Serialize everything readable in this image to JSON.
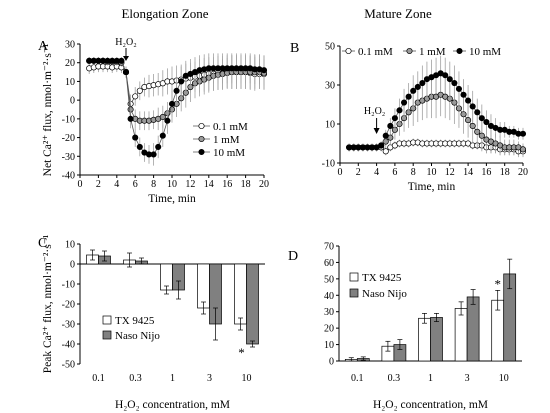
{
  "zone_titles": {
    "left": "Elongation Zone",
    "right": "Mature Zone"
  },
  "series_names": [
    "0.1 mM",
    "1 mM",
    "10 mM"
  ],
  "bar_legend": [
    "TX 9425",
    "Naso Nijo"
  ],
  "colors": {
    "open": "#ffffff",
    "grey": "#9a9a9a",
    "black": "#000000",
    "bar_grey": "#808080",
    "error": "#a0a0a0"
  },
  "chart_data": [
    {
      "panel": "A",
      "type": "line",
      "xlabel": "Time, min",
      "ylabel": "Net Ca²⁺ flux, nmol·m⁻²·s⁻¹",
      "xlim": [
        0,
        20
      ],
      "ylim": [
        -40,
        30
      ],
      "xticks": [
        "0",
        "2",
        "4",
        "6",
        "8",
        "10",
        "12",
        "14",
        "16",
        "18",
        "20"
      ],
      "yticks": [
        "30",
        "20",
        "10",
        "0",
        "-10",
        "-20",
        "-30",
        "-40"
      ],
      "annotation": {
        "text": "H₂O₂",
        "x": 5
      },
      "legend_position": "bottom-right",
      "x": [
        1,
        1.5,
        2,
        2.5,
        3,
        3.5,
        4,
        4.5,
        5,
        5.5,
        6,
        6.5,
        7,
        7.5,
        8,
        8.5,
        9,
        9.5,
        10,
        10.5,
        11,
        11.5,
        12,
        12.5,
        13,
        13.5,
        14,
        14.5,
        15,
        15.5,
        16,
        16.5,
        17,
        17.5,
        18,
        18.5,
        19,
        19.5,
        20
      ],
      "series": [
        {
          "name": "0.1 mM",
          "marker": "open",
          "values": [
            17,
            17.5,
            18,
            18,
            18,
            17.5,
            18,
            17.5,
            15,
            -2,
            2,
            5,
            7,
            7.5,
            8,
            8.5,
            9,
            10,
            10,
            10.5,
            11,
            11.5,
            12,
            12.5,
            13,
            13.5,
            14,
            14,
            14.5,
            14.5,
            15,
            15,
            15,
            15,
            15,
            14.5,
            14,
            14,
            14
          ],
          "errors": [
            3,
            3,
            3,
            3,
            3,
            3,
            3,
            3,
            3,
            5,
            5,
            5,
            5,
            6,
            6,
            6,
            7,
            7,
            8,
            8,
            8,
            8,
            8,
            8,
            9,
            9,
            9,
            9,
            9,
            9,
            9,
            9,
            9,
            9,
            9,
            9,
            9,
            8,
            8
          ]
        },
        {
          "name": "1 mM",
          "marker": "grey",
          "values": [
            21,
            21,
            21,
            21,
            20.5,
            20.5,
            20.5,
            20,
            15,
            -5,
            -10,
            -11,
            -11,
            -11,
            -10.5,
            -10,
            -9,
            -7,
            -5,
            -2,
            1,
            4,
            7,
            9,
            10,
            11,
            12,
            13,
            13.5,
            14,
            14.5,
            15,
            15,
            15,
            15,
            15,
            15,
            15,
            14.5
          ],
          "errors": [
            2,
            2,
            2,
            2,
            2,
            2,
            2,
            2,
            3,
            5,
            5,
            5,
            5,
            5,
            5,
            6,
            6,
            6,
            7,
            7,
            7,
            8,
            8,
            8,
            8,
            8,
            8,
            8,
            8,
            8,
            8,
            9,
            9,
            9,
            9,
            9,
            9,
            9,
            9
          ]
        },
        {
          "name": "10 mM",
          "marker": "black",
          "values": [
            21,
            21,
            21,
            21,
            21,
            21,
            21,
            21,
            15,
            -10,
            -20,
            -25,
            -28,
            -29,
            -29,
            -25,
            -19,
            -11,
            -2,
            5,
            10,
            13,
            14,
            15,
            16,
            16.5,
            17,
            17,
            17,
            17,
            17,
            17,
            17,
            17,
            17,
            17,
            16.5,
            16.5,
            16
          ],
          "errors": [
            2,
            2,
            2,
            2,
            2,
            2,
            2,
            2,
            3,
            5,
            5,
            5,
            5,
            5,
            6,
            6,
            6,
            7,
            7,
            7,
            8,
            8,
            8,
            8,
            8,
            8,
            8,
            8,
            8,
            8,
            8,
            8,
            8,
            8,
            8,
            8,
            8,
            8,
            8
          ]
        }
      ]
    },
    {
      "panel": "B",
      "type": "line",
      "xlabel": "Time, min",
      "ylabel": "",
      "xlim": [
        0,
        20
      ],
      "ylim": [
        -10,
        50
      ],
      "xticks": [
        "0",
        "2",
        "4",
        "6",
        "8",
        "10",
        "12",
        "14",
        "16",
        "18",
        "20"
      ],
      "yticks": [
        "50",
        "30",
        "10",
        "-10"
      ],
      "annotation": {
        "text": "H₂O₂",
        "x": 4
      },
      "legend_position": "top",
      "x": [
        1,
        1.5,
        2,
        2.5,
        3,
        3.5,
        4,
        4.5,
        5,
        5.5,
        6,
        6.5,
        7,
        7.5,
        8,
        8.5,
        9,
        9.5,
        10,
        10.5,
        11,
        11.5,
        12,
        12.5,
        13,
        13.5,
        14,
        14.5,
        15,
        15.5,
        16,
        16.5,
        17,
        17.5,
        18,
        18.5,
        19,
        19.5,
        20
      ],
      "series": [
        {
          "name": "0.1 mM",
          "marker": "open",
          "values": [
            -2,
            -2,
            -2,
            -2,
            -2,
            -2,
            -2,
            -2,
            -4,
            -2,
            -1,
            0,
            0,
            0,
            0.5,
            0.5,
            0,
            0,
            0,
            0,
            0,
            0,
            0,
            0,
            0,
            0,
            0,
            -1,
            -1,
            -1,
            -2,
            -2,
            -2,
            -3,
            -3,
            -3,
            -3,
            -4,
            -4
          ],
          "errors": [
            2,
            2,
            2,
            2,
            2,
            2,
            2,
            2,
            2,
            2,
            2,
            2,
            2,
            2,
            2,
            2,
            2,
            2,
            2,
            2,
            2,
            2,
            2,
            2,
            2,
            2,
            2,
            2,
            2,
            2,
            3,
            3,
            3,
            3,
            3,
            3,
            3,
            3,
            3
          ]
        },
        {
          "name": "1 mM",
          "marker": "grey",
          "values": [
            -2,
            -2,
            -2,
            -2,
            -2,
            -2,
            -2,
            -1,
            1,
            3,
            7,
            10,
            13,
            16,
            18,
            21,
            22,
            23,
            24,
            24,
            25,
            24,
            23,
            21,
            18,
            15,
            12,
            9,
            6,
            4,
            2,
            1,
            0,
            -1,
            -2,
            -2,
            -2,
            -2,
            -3
          ],
          "errors": [
            2,
            2,
            2,
            2,
            2,
            2,
            2,
            2,
            3,
            4,
            5,
            6,
            7,
            8,
            9,
            10,
            10,
            10,
            11,
            11,
            11,
            11,
            11,
            11,
            10,
            10,
            9,
            9,
            8,
            8,
            7,
            6,
            5,
            5,
            4,
            4,
            4,
            3,
            3
          ]
        },
        {
          "name": "10 mM",
          "marker": "black",
          "values": [
            -2,
            -2,
            -2,
            -2,
            -2,
            -2,
            -2,
            -1,
            4,
            9,
            13,
            17,
            21,
            24,
            27,
            29,
            31,
            33,
            34,
            35,
            36,
            35,
            33,
            31,
            28,
            25,
            22,
            19,
            16,
            13,
            11,
            9,
            8,
            7,
            7,
            6,
            6,
            5,
            5
          ],
          "errors": [
            2,
            2,
            2,
            2,
            2,
            2,
            2,
            2,
            3,
            4,
            5,
            6,
            7,
            7,
            8,
            8,
            9,
            9,
            9,
            9,
            9,
            9,
            9,
            9,
            9,
            8,
            8,
            8,
            7,
            7,
            6,
            6,
            5,
            4,
            4,
            3,
            3,
            3,
            3
          ]
        }
      ]
    },
    {
      "panel": "C",
      "type": "bar",
      "xlabel": "H₂O₂ concentration, mM",
      "ylabel": "Peak Ca²⁺ flux, nmol·m⁻²·s⁻¹",
      "ylim": [
        -50,
        10
      ],
      "yticks": [
        "10",
        "0",
        "-10",
        "-20",
        "-30",
        "-40",
        "-50"
      ],
      "categories": [
        "0.1",
        "0.3",
        "1",
        "3",
        "10"
      ],
      "series": [
        {
          "name": "TX 9425",
          "values": [
            4.5,
            2,
            -13,
            -22,
            -30
          ],
          "errors": [
            2.5,
            3.5,
            2,
            3,
            3
          ]
        },
        {
          "name": "Naso Nijo",
          "values": [
            4,
            1.5,
            -13,
            -30,
            -40
          ],
          "errors": [
            2.5,
            1.5,
            4.5,
            8,
            1.5
          ]
        }
      ],
      "significance": [
        {
          "category": "10",
          "text": "*"
        }
      ],
      "legend_position": "bottom-left"
    },
    {
      "panel": "D",
      "type": "bar",
      "xlabel": "H₂O₂ concentration, mM",
      "ylabel": "",
      "ylim": [
        0,
        70
      ],
      "yticks": [
        "70",
        "60",
        "50",
        "40",
        "30",
        "20",
        "10",
        "0"
      ],
      "categories": [
        "0.1",
        "0.3",
        "1",
        "3",
        "10"
      ],
      "series": [
        {
          "name": "TX 9425",
          "values": [
            1,
            9,
            26,
            32,
            37
          ],
          "errors": [
            1,
            3,
            3,
            4,
            6
          ]
        },
        {
          "name": "Naso Nijo",
          "values": [
            1.5,
            10,
            26.5,
            39,
            53
          ],
          "errors": [
            1,
            3,
            2.5,
            4.5,
            9
          ]
        }
      ],
      "significance": [
        {
          "category": "10",
          "text": "*"
        }
      ],
      "legend_position": "top-left"
    }
  ]
}
